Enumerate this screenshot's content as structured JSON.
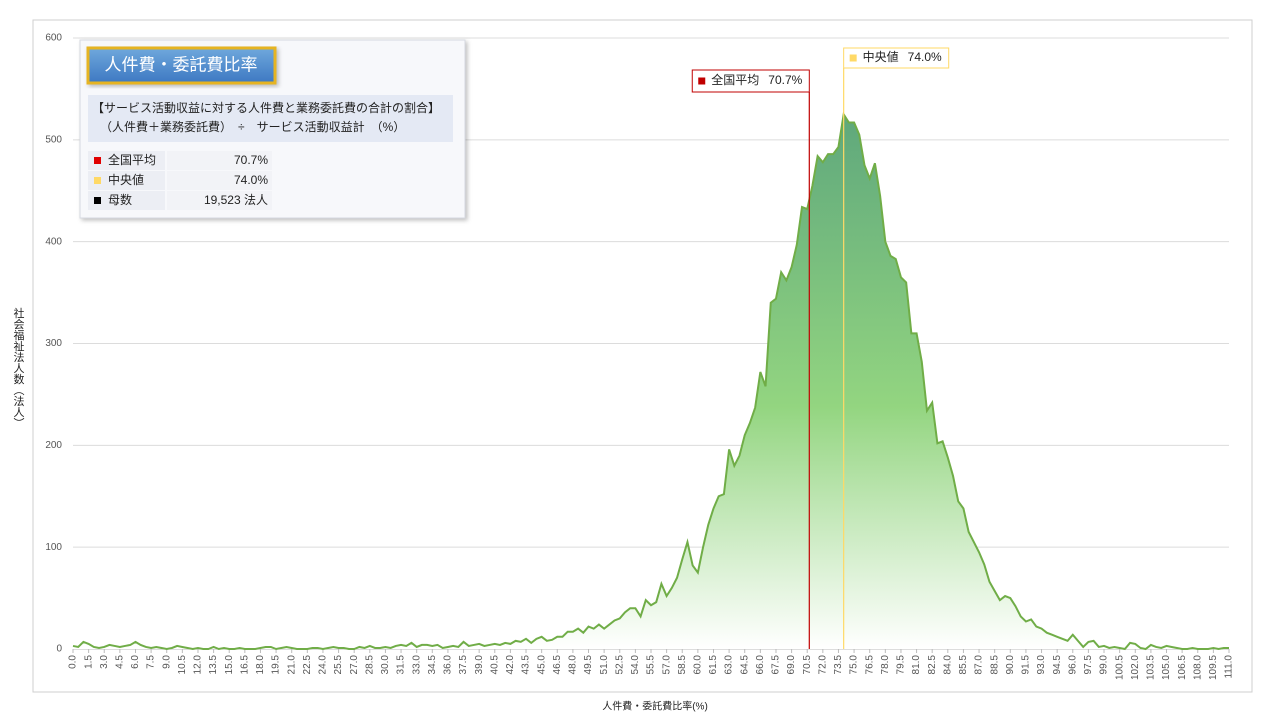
{
  "chart_data": {
    "type": "area",
    "title": "人件費・委託費比率",
    "subtitle": [
      "【サービス活動収益に対する人件費と業務委託費の合計の割合】",
      "（人件費＋業務委託費）　÷　サービス活動収益計　（%）"
    ],
    "x_label": "人件費・委託費比率(%)",
    "y_label": "社会福祉法人数（法人）",
    "x": [
      0,
      0.5,
      1,
      1.5,
      2,
      2.5,
      3,
      3.5,
      4,
      4.5,
      5,
      5.5,
      6,
      6.5,
      7,
      7.5,
      8,
      8.5,
      9,
      9.5,
      10,
      10.5,
      11,
      11.5,
      12,
      12.5,
      13,
      13.5,
      14,
      14.5,
      15,
      15.5,
      16,
      16.5,
      17,
      17.5,
      18,
      18.5,
      19,
      19.5,
      20,
      20.5,
      21,
      21.5,
      22,
      22.5,
      23,
      23.5,
      24,
      24.5,
      25,
      25.5,
      26,
      26.5,
      27,
      27.5,
      28,
      28.5,
      29,
      29.5,
      30,
      30.5,
      31,
      31.5,
      32,
      32.5,
      33,
      33.5,
      34,
      34.5,
      35,
      35.5,
      36,
      36.5,
      37,
      37.5,
      38,
      38.5,
      39,
      39.5,
      40,
      40.5,
      41,
      41.5,
      42,
      42.5,
      43,
      43.5,
      44,
      44.5,
      45,
      45.5,
      46,
      46.5,
      47,
      47.5,
      48,
      48.5,
      49,
      49.5,
      50,
      50.5,
      51,
      51.5,
      52,
      52.5,
      53,
      53.5,
      54,
      54.5,
      55,
      55.5,
      56,
      56.5,
      57,
      57.5,
      58,
      58.5,
      59,
      59.5,
      60,
      60.5,
      61,
      61.5,
      62,
      62.5,
      63,
      63.5,
      64,
      64.5,
      65,
      65.5,
      66,
      66.5,
      67,
      67.5,
      68,
      68.5,
      69,
      69.5,
      70,
      70.5,
      71,
      71.5,
      72,
      72.5,
      73,
      73.5,
      74,
      74.5,
      75,
      75.5,
      76,
      76.5,
      77,
      77.5,
      78,
      78.5,
      79,
      79.5,
      80,
      80.5,
      81,
      81.5,
      82,
      82.5,
      83,
      83.5,
      84,
      84.5,
      85,
      85.5,
      86,
      86.5,
      87,
      87.5,
      88,
      88.5,
      89,
      89.5,
      90,
      90.5,
      91,
      91.5,
      92,
      92.5,
      93,
      93.5,
      94,
      94.5,
      95,
      95.5,
      96,
      96.5,
      97,
      97.5,
      98,
      98.5,
      99,
      99.5,
      100,
      100.5,
      101,
      101.5,
      102,
      102.5,
      103,
      103.5,
      104,
      104.5,
      105,
      105.5,
      106,
      106.5,
      107,
      107.5,
      108,
      108.5,
      109,
      109.5,
      110,
      110.5,
      111
    ],
    "values": [
      3,
      2,
      7,
      5,
      2,
      1,
      2,
      4,
      3,
      2,
      3,
      4,
      7,
      4,
      2,
      1,
      2,
      1,
      0,
      1,
      3,
      2,
      1,
      0,
      1,
      0,
      0,
      2,
      0,
      1,
      0,
      0,
      1,
      0,
      0,
      0,
      1,
      2,
      2,
      0,
      1,
      2,
      1,
      0,
      0,
      0,
      1,
      1,
      0,
      1,
      2,
      1,
      1,
      0,
      0,
      2,
      1,
      3,
      1,
      1,
      2,
      1,
      3,
      4,
      3,
      6,
      2,
      4,
      4,
      3,
      4,
      1,
      2,
      3,
      2,
      7,
      3,
      4,
      5,
      3,
      4,
      5,
      4,
      6,
      5,
      8,
      7,
      10,
      6,
      10,
      12,
      8,
      9,
      12,
      12,
      17,
      17,
      20,
      16,
      22,
      20,
      24,
      20,
      24,
      28,
      30,
      36,
      40,
      40,
      32,
      48,
      43,
      46,
      64,
      52,
      60,
      70,
      88,
      105,
      82,
      75,
      100,
      122,
      138,
      150,
      152,
      196,
      180,
      190,
      210,
      222,
      237,
      272,
      258,
      340,
      344,
      370,
      362,
      375,
      397,
      434,
      432,
      455,
      484,
      478,
      486,
      486,
      493,
      525,
      517,
      517,
      505,
      475,
      462,
      477,
      445,
      400,
      386,
      383,
      365,
      360,
      310,
      310,
      282,
      234,
      242,
      202,
      204,
      188,
      170,
      145,
      138,
      115,
      105,
      95,
      83,
      66,
      57,
      48,
      52,
      50,
      42,
      32,
      27,
      29,
      22,
      20,
      16,
      14,
      12,
      10,
      8,
      14,
      8,
      2,
      7,
      8,
      2,
      3,
      1,
      2,
      1,
      0,
      6,
      5,
      1,
      0,
      4,
      2,
      1,
      3,
      2,
      1,
      0,
      0,
      1,
      0,
      0,
      0,
      1,
      0,
      1,
      1
    ],
    "line_color": "#70ad47",
    "xlim": [
      0,
      111
    ],
    "ylim": [
      0,
      600
    ],
    "yticks": [
      0,
      100,
      200,
      300,
      400,
      500,
      600
    ],
    "xticks": [
      {
        "value": 0,
        "label": "0.0"
      },
      1.5,
      {
        "value": 3,
        "label": "3.0"
      },
      4.5,
      {
        "value": 6,
        "label": "6.0"
      },
      7.5,
      {
        "value": 9,
        "label": "9.0"
      },
      10.5,
      {
        "value": 12,
        "label": "12.0"
      },
      13.5,
      {
        "value": 15,
        "label": "15.0"
      },
      16.5,
      {
        "value": 18,
        "label": "18.0"
      },
      19.5,
      {
        "value": 21,
        "label": "21.0"
      },
      22.5,
      {
        "value": 24,
        "label": "24.0"
      },
      25.5,
      {
        "value": 27,
        "label": "27.0"
      },
      28.5,
      {
        "value": 30,
        "label": "30.0"
      },
      31.5,
      {
        "value": 33,
        "label": "33.0"
      },
      34.5,
      {
        "value": 36,
        "label": "36.0"
      },
      37.5,
      {
        "value": 39,
        "label": "39.0"
      },
      40.5,
      {
        "value": 42,
        "label": "42.0"
      },
      43.5,
      {
        "value": 45,
        "label": "45.0"
      },
      46.5,
      {
        "value": 48,
        "label": "48.0"
      },
      49.5,
      {
        "value": 51,
        "label": "51.0"
      },
      52.5,
      {
        "value": 54,
        "label": "54.0"
      },
      55.5,
      {
        "value": 57,
        "label": "57.0"
      },
      58.5,
      {
        "value": 60,
        "label": "60.0"
      },
      61.5,
      {
        "value": 63,
        "label": "63.0"
      },
      64.5,
      {
        "value": 66,
        "label": "66.0"
      },
      67.5,
      {
        "value": 69,
        "label": "69.0"
      },
      70.5,
      {
        "value": 72,
        "label": "72.0"
      },
      73.5,
      {
        "value": 75,
        "label": "75.0"
      },
      76.5,
      {
        "value": 78,
        "label": "78.0"
      },
      79.5,
      {
        "value": 81,
        "label": "81.0"
      },
      82.5,
      {
        "value": 84,
        "label": "84.0"
      },
      85.5,
      {
        "value": 87,
        "label": "87.0"
      },
      88.5,
      {
        "value": 90,
        "label": "90.0"
      },
      91.5,
      {
        "value": 93,
        "label": "93.0"
      },
      94.5,
      {
        "value": 96,
        "label": "96.0"
      },
      97.5,
      {
        "value": 99,
        "label": "99.0"
      },
      100.5,
      {
        "value": 102,
        "label": "102.0"
      },
      103.5,
      {
        "value": 105,
        "label": "105.0"
      },
      106.5,
      {
        "value": 108,
        "label": "108.0"
      },
      109.5,
      {
        "value": 111,
        "label": "111.0"
      }
    ],
    "grid": true,
    "reference_lines": [
      {
        "name": "全国平均",
        "value": 70.7,
        "value_label": "70.7%",
        "color": "#c00000"
      },
      {
        "name": "中央値",
        "value": 74.0,
        "value_label": "74.0%",
        "color": "#ffd966"
      }
    ],
    "stats": [
      {
        "name": "全国平均",
        "value": "70.7%",
        "color": "#e00000"
      },
      {
        "name": "中央値",
        "value": "74.0%",
        "color": "#ffd966"
      },
      {
        "name": "母数",
        "value": "19,523 法人",
        "color": "#000000"
      }
    ]
  }
}
